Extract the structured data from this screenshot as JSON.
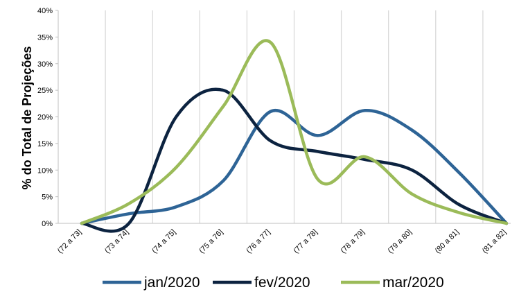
{
  "chart_data": {
    "type": "line",
    "title": "",
    "xlabel": "",
    "ylabel": "% do Total de Projeções",
    "categories": [
      "(72 a 73]",
      "(73 a 74]",
      "(74 a 75]",
      "(75 a 76]",
      "(76 a 77]",
      "(77 a 78]",
      "(78 a 79]",
      "(79 a 80]",
      "(80 a 81]",
      "(81 a 82]"
    ],
    "y_ticks": [
      "0%",
      "5%",
      "10%",
      "15%",
      "20%",
      "25%",
      "30%",
      "35%",
      "40%"
    ],
    "ylim": [
      0,
      40
    ],
    "grid": "vertical",
    "legend_position": "bottom",
    "series": [
      {
        "name": "jan/2020",
        "color": "#2E6496",
        "values": [
          0,
          1.8,
          3.1,
          8.0,
          21.0,
          16.5,
          21.2,
          17.5,
          9.5,
          0
        ]
      },
      {
        "name": "fev/2020",
        "color": "#0C2340",
        "values": [
          0,
          0,
          20.0,
          25.0,
          15.5,
          13.5,
          12.0,
          10.0,
          3.5,
          0
        ]
      },
      {
        "name": "mar/2020",
        "color": "#9BBB59",
        "values": [
          0,
          3.7,
          10.5,
          22.0,
          34.0,
          8.3,
          12.5,
          5.5,
          2.0,
          0
        ]
      }
    ]
  }
}
